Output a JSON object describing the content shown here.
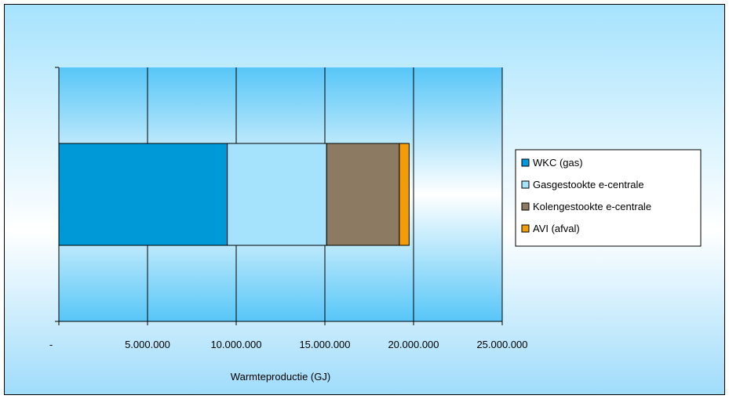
{
  "chart_data": {
    "type": "bar",
    "orientation": "horizontal",
    "stacked": true,
    "categories": [
      ""
    ],
    "series": [
      {
        "name": "WKC (gas)",
        "values": [
          9500000
        ],
        "color": "#0099d8"
      },
      {
        "name": "Gasgestookte e-centrale",
        "values": [
          5600000
        ],
        "color": "#a5e2fb"
      },
      {
        "name": "Kolengestookte e-centrale",
        "values": [
          4100000
        ],
        "color": "#8c7b62"
      },
      {
        "name": "AVI (afval)",
        "values": [
          550000
        ],
        "color": "#f39c0a"
      }
    ],
    "xlabel": "Warmteproductie (GJ)",
    "xlim": [
      0,
      25000000
    ],
    "xticks": [
      0,
      5000000,
      10000000,
      15000000,
      20000000,
      25000000
    ],
    "xtick_labels": [
      "-",
      "5.000.000",
      "10.000.000",
      "15.000.000",
      "20.000.000",
      "25.000.000"
    ],
    "grid": true,
    "legend_position": "right"
  }
}
